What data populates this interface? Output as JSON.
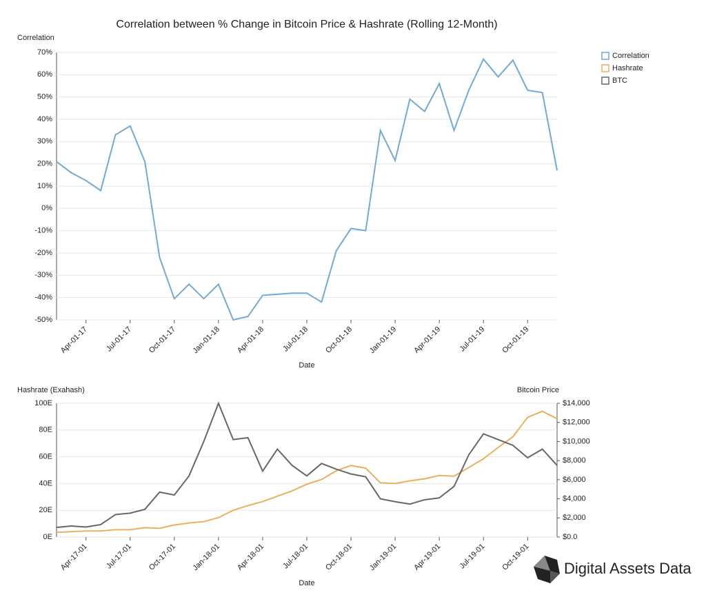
{
  "chart_data": [
    {
      "type": "line",
      "title": "Correlation between % Change in Bitcoin Price & Hashrate (Rolling 12-Month)",
      "y_label": "Correlation",
      "x_label": "Date",
      "x": [
        "2017-02-01",
        "2017-03-01",
        "2017-04-01",
        "2017-05-01",
        "2017-06-01",
        "2017-07-01",
        "2017-08-01",
        "2017-09-01",
        "2017-10-01",
        "2017-11-01",
        "2017-12-01",
        "2018-01-01",
        "2018-02-01",
        "2018-03-01",
        "2018-04-01",
        "2018-05-01",
        "2018-06-01",
        "2018-07-01",
        "2018-08-01",
        "2018-09-01",
        "2018-10-01",
        "2018-11-01",
        "2018-12-01",
        "2019-01-01",
        "2019-02-01",
        "2019-03-01",
        "2019-04-01",
        "2019-05-01",
        "2019-06-01",
        "2019-07-01",
        "2019-08-01",
        "2019-09-01",
        "2019-10-01",
        "2019-11-01",
        "2019-12-01"
      ],
      "xticks": [
        {
          "value": "2017-04-01",
          "label": "Apr-01-17"
        },
        {
          "value": "2017-07-01",
          "label": "Jul-01-17"
        },
        {
          "value": "2017-10-01",
          "label": "Oct-01-17"
        },
        {
          "value": "2018-01-01",
          "label": "Jan-01-18"
        },
        {
          "value": "2018-04-01",
          "label": "Apr-01-18"
        },
        {
          "value": "2018-07-01",
          "label": "Jul-01-18"
        },
        {
          "value": "2018-10-01",
          "label": "Oct-01-18"
        },
        {
          "value": "2019-01-01",
          "label": "Jan-01-19"
        },
        {
          "value": "2019-04-01",
          "label": "Apr-01-19"
        },
        {
          "value": "2019-07-01",
          "label": "Jul-01-19"
        },
        {
          "value": "2019-10-01",
          "label": "Oct-01-19"
        }
      ],
      "ylim": [
        -50,
        70
      ],
      "yticks": [
        {
          "value": -50,
          "label": "-50%"
        },
        {
          "value": -40,
          "label": "-40%"
        },
        {
          "value": -30,
          "label": "-30%"
        },
        {
          "value": -20,
          "label": "-20%"
        },
        {
          "value": -10,
          "label": "-10%"
        },
        {
          "value": 0,
          "label": "0%"
        },
        {
          "value": 10,
          "label": "10%"
        },
        {
          "value": 20,
          "label": "20%"
        },
        {
          "value": 30,
          "label": "30%"
        },
        {
          "value": 40,
          "label": "40%"
        },
        {
          "value": 50,
          "label": "50%"
        },
        {
          "value": 60,
          "label": "60%"
        },
        {
          "value": 70,
          "label": "70%"
        }
      ],
      "grid": true,
      "legend": "right",
      "series": [
        {
          "name": "Correlation",
          "color": "#72a9d2",
          "values": [
            21,
            16,
            12.5,
            8,
            33,
            37,
            21,
            -22,
            -40.5,
            -34,
            -40.5,
            -34,
            -50,
            -48.5,
            -39,
            -38.5,
            -38,
            -38,
            -42,
            -19,
            -9,
            -10,
            35,
            21.5,
            49,
            43.5,
            56,
            35,
            53,
            67,
            59,
            66.5,
            53,
            52,
            17
          ]
        }
      ]
    },
    {
      "type": "line",
      "x_label": "Date",
      "y_label": "Hashrate (Exahash)",
      "y2_label": "Bitcoin Price",
      "x": [
        "2017-02-01",
        "2017-03-01",
        "2017-04-01",
        "2017-05-01",
        "2017-06-01",
        "2017-07-01",
        "2017-08-01",
        "2017-09-01",
        "2017-10-01",
        "2017-11-01",
        "2017-12-01",
        "2018-01-01",
        "2018-02-01",
        "2018-03-01",
        "2018-04-01",
        "2018-05-01",
        "2018-06-01",
        "2018-07-01",
        "2018-08-01",
        "2018-09-01",
        "2018-10-01",
        "2018-11-01",
        "2018-12-01",
        "2019-01-01",
        "2019-02-01",
        "2019-03-01",
        "2019-04-01",
        "2019-05-01",
        "2019-06-01",
        "2019-07-01",
        "2019-08-01",
        "2019-09-01",
        "2019-10-01",
        "2019-11-01",
        "2019-12-01"
      ],
      "xticks": [
        {
          "value": "2017-04-01",
          "label": "Apr-17-01"
        },
        {
          "value": "2017-07-01",
          "label": "Jul-17-01"
        },
        {
          "value": "2017-10-01",
          "label": "Oct-17-01"
        },
        {
          "value": "2018-01-01",
          "label": "Jan-18-01"
        },
        {
          "value": "2018-04-01",
          "label": "Apr-18-01"
        },
        {
          "value": "2018-07-01",
          "label": "Jul-18-01"
        },
        {
          "value": "2018-10-01",
          "label": "Oct-18-01"
        },
        {
          "value": "2019-01-01",
          "label": "Jan-19-01"
        },
        {
          "value": "2019-04-01",
          "label": "Apr-19-01"
        },
        {
          "value": "2019-07-01",
          "label": "Jul-19-01"
        },
        {
          "value": "2019-10-01",
          "label": "Oct-19-01"
        }
      ],
      "ylim": [
        0,
        100
      ],
      "yticks": [
        {
          "value": 0,
          "label": "0E"
        },
        {
          "value": 20,
          "label": "20E"
        },
        {
          "value": 40,
          "label": "40E"
        },
        {
          "value": 60,
          "label": "60E"
        },
        {
          "value": 80,
          "label": "80E"
        },
        {
          "value": 100,
          "label": "100E"
        }
      ],
      "y2lim": [
        0,
        14000
      ],
      "y2ticks": [
        {
          "value": 0,
          "label": "$0.0"
        },
        {
          "value": 2000,
          "label": "$2,000"
        },
        {
          "value": 4000,
          "label": "$4,000"
        },
        {
          "value": 6000,
          "label": "$6,000"
        },
        {
          "value": 8000,
          "label": "$8,000"
        },
        {
          "value": 10000,
          "label": "$10,000"
        },
        {
          "value": 12000,
          "label": "$12,000"
        },
        {
          "value": 14000,
          "label": "$14,000"
        }
      ],
      "grid": true,
      "series": [
        {
          "name": "Hashrate",
          "color": "#e9b05a",
          "values": [
            3.5,
            4,
            4.5,
            4.5,
            5.5,
            5.5,
            7,
            6.5,
            9,
            10.5,
            11.5,
            14.5,
            20,
            23.5,
            26.5,
            30.5,
            34.5,
            39.5,
            43,
            49.5,
            53.5,
            51.5,
            40.5,
            40,
            42,
            43.5,
            46,
            45.5,
            52,
            58.5,
            67,
            75,
            89.5,
            94,
            88.5
          ]
        },
        {
          "name": "BTC",
          "color": "#666666",
          "axis": "y2",
          "values": [
            1000,
            1150,
            1050,
            1300,
            2350,
            2500,
            2900,
            4700,
            4400,
            6400,
            10000,
            14000,
            10200,
            10400,
            6900,
            9200,
            7500,
            6400,
            7700,
            7100,
            6600,
            6300,
            4000,
            3700,
            3450,
            3900,
            4100,
            5300,
            8600,
            10800,
            10200,
            9600,
            8300,
            9200,
            7500
          ]
        }
      ]
    }
  ],
  "watermark": "Digital Assets Data"
}
